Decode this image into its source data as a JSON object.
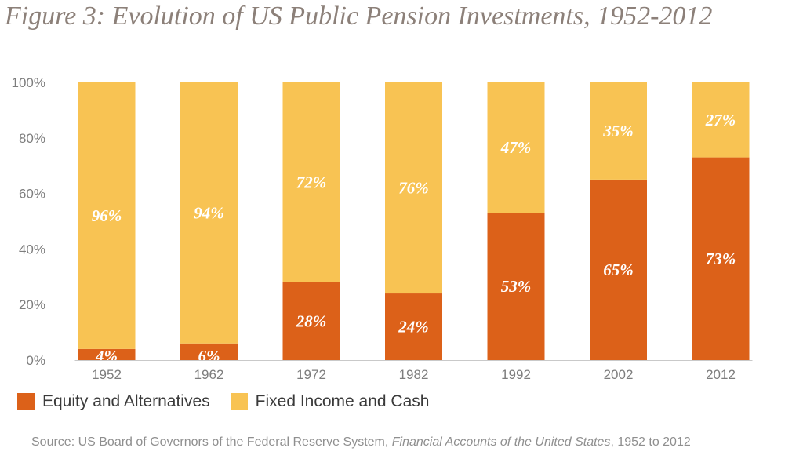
{
  "title": "Figure 3: Evolution of US Public Pension Investments, 1952-2012",
  "source": {
    "prefix": "Source: US Board of Governors of the Federal Reserve System, ",
    "publication": "Financial Accounts of the United States",
    "suffix": ", 1952 to 2012"
  },
  "legend": [
    {
      "label": "Equity and Alternatives",
      "color": "#dc6119"
    },
    {
      "label": "Fixed Income and Cash",
      "color": "#f8c353"
    }
  ],
  "chart_data": {
    "type": "bar",
    "stacked": true,
    "categories": [
      "1952",
      "1962",
      "1972",
      "1982",
      "1992",
      "2002",
      "2012"
    ],
    "series": [
      {
        "name": "Equity and Alternatives",
        "color": "#dc6119",
        "values": [
          4,
          6,
          28,
          24,
          53,
          65,
          73
        ],
        "labels": [
          "4%",
          "6%",
          "28%",
          "24%",
          "53%",
          "65%",
          "73%"
        ]
      },
      {
        "name": "Fixed Income and Cash",
        "color": "#f8c353",
        "values": [
          96,
          94,
          72,
          76,
          47,
          35,
          27
        ],
        "labels": [
          "96%",
          "94%",
          "72%",
          "76%",
          "47%",
          "35%",
          "27%"
        ]
      }
    ],
    "yticks": [
      "0%",
      "20%",
      "40%",
      "60%",
      "80%",
      "100%"
    ],
    "ylim": [
      0,
      100
    ],
    "title": "Figure 3: Evolution of US Public Pension Investments, 1952-2012",
    "xlabel": "",
    "ylabel": "",
    "grid": false,
    "legend_position": "bottom-left"
  }
}
